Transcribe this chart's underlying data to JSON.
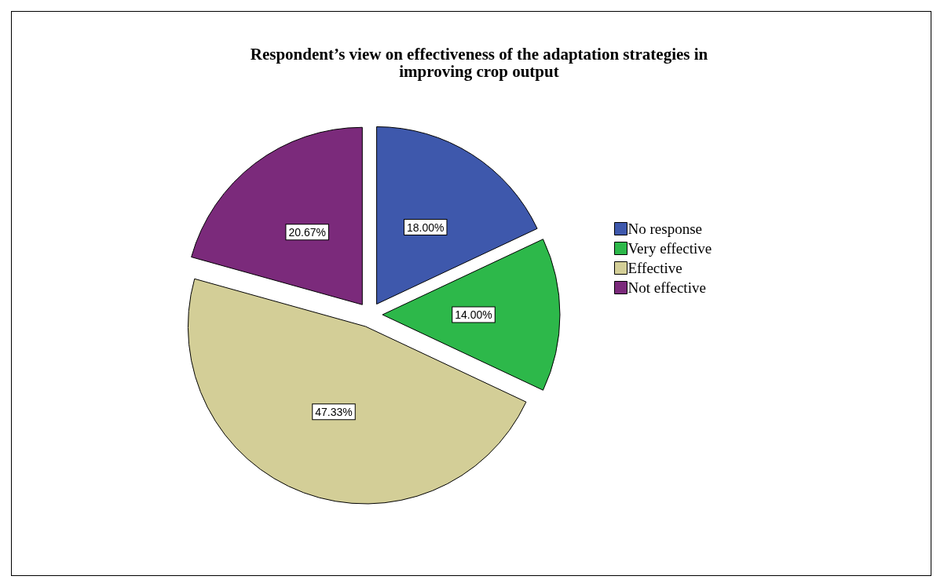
{
  "chart_data": {
    "type": "pie",
    "title": "Respondent’s view on effectiveness of the adaptation strategies in\nimproving crop output",
    "categories": [
      "No response",
      "Very effective",
      "Effective",
      "Not effective"
    ],
    "values": [
      18.0,
      14.0,
      47.33,
      20.67
    ],
    "colors": [
      "#3e58ac",
      "#2db84a",
      "#d3ce97",
      "#7b2a7b"
    ],
    "value_labels": [
      "18.00%",
      "14.00%",
      "47.33%",
      "20.67%"
    ],
    "legend": "right"
  }
}
